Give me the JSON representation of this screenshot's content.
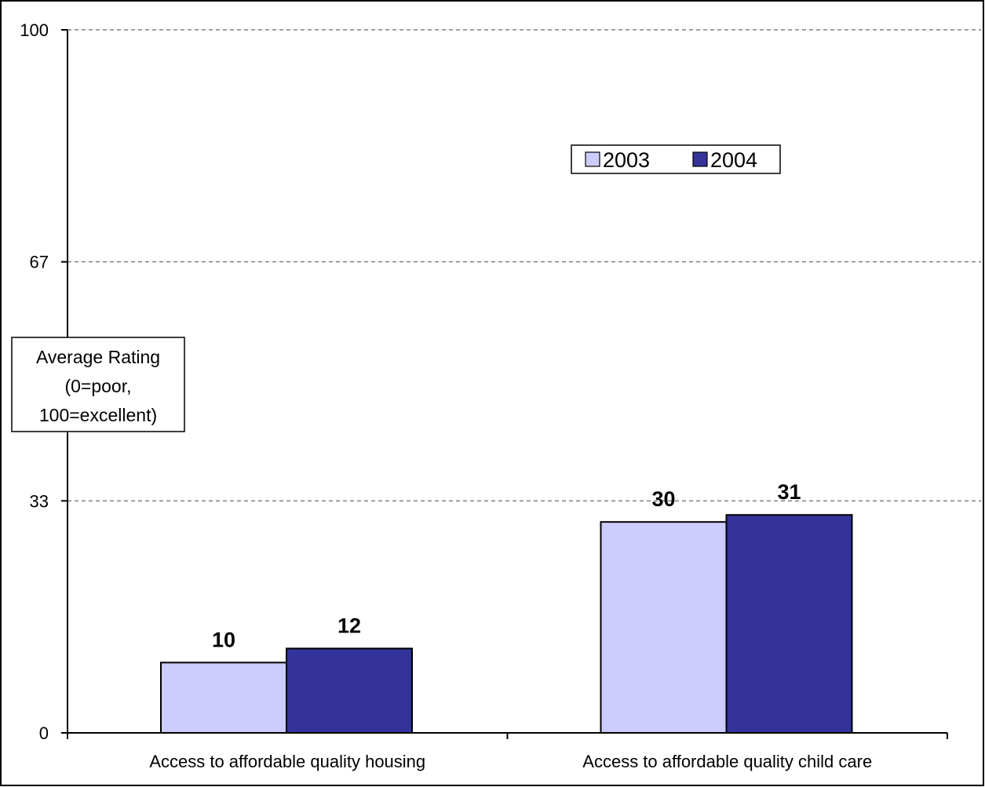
{
  "chart_data": {
    "type": "bar",
    "title": "",
    "categories": [
      "Access to affordable quality housing",
      "Access to affordable quality child care"
    ],
    "series": [
      {
        "name": "2003",
        "values": [
          10,
          30
        ],
        "color": "#ccccff"
      },
      {
        "name": "2004",
        "values": [
          12,
          31
        ],
        "color": "#333399"
      }
    ],
    "data_labels": [
      [
        "10",
        "30"
      ],
      [
        "12",
        "31"
      ]
    ],
    "ylabel_lines": [
      "Average Rating",
      "(0=poor,",
      "100=excellent)"
    ],
    "ylim": [
      0,
      100
    ],
    "yticks": [
      0,
      33,
      67,
      100
    ],
    "ytick_labels": [
      "0",
      "33",
      "67",
      "100"
    ],
    "grid": true,
    "legend_position": "top-right"
  }
}
